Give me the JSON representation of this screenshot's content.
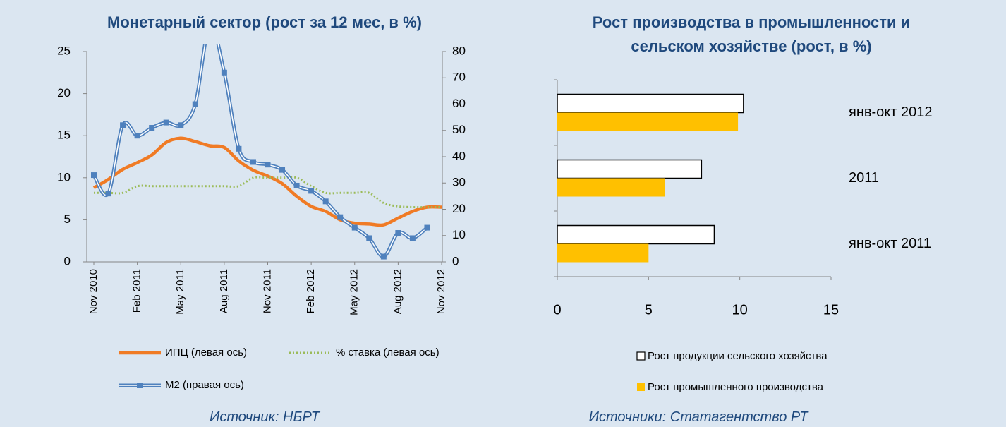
{
  "chart_data": [
    {
      "type": "line",
      "title": "Монетарный сектор (рост за 12 мес, в %)",
      "source": "Источник: НБРТ",
      "categories": [
        "Nov 2010",
        null,
        null,
        "Feb 2011",
        null,
        null,
        "May 2011",
        null,
        null,
        "Aug 2011",
        null,
        null,
        "Nov 2011",
        null,
        null,
        "Feb 2012",
        null,
        null,
        "May 2012",
        null,
        null,
        "Aug 2012",
        null,
        null,
        "Nov 2012"
      ],
      "ylim": [
        0,
        25
      ],
      "yticks": [
        0,
        5,
        10,
        15,
        20,
        25
      ],
      "y2lim": [
        0,
        80
      ],
      "y2ticks": [
        0,
        10,
        20,
        30,
        40,
        50,
        60,
        70,
        80
      ],
      "series": [
        {
          "name": "ИПЦ (левая ось)",
          "color": "#f07b25",
          "style": "solid",
          "values": [
            8.8,
            9.8,
            11,
            11.8,
            12.7,
            14.2,
            14.7,
            14.3,
            13.8,
            13.6,
            12,
            10.9,
            10.2,
            9.3,
            7.8,
            6.6,
            6,
            5,
            4.6,
            4.5,
            4.4,
            5.2,
            6,
            6.5,
            6.5
          ]
        },
        {
          "name": "% ставка (левая ось)",
          "color": "#9bbb59",
          "style": "dotted",
          "values": [
            8.2,
            8.2,
            8.2,
            9,
            9,
            9,
            9,
            9,
            9,
            9,
            9,
            10,
            10,
            10,
            10,
            9,
            8.2,
            8.2,
            8.2,
            8.2,
            7,
            6.6,
            6.5,
            6.5,
            6.5
          ]
        },
        {
          "name": "М2 (правая ось)",
          "color": "#4f81bd",
          "style": "double",
          "axis": "y2",
          "values": [
            33,
            26,
            52,
            48,
            51,
            53,
            52,
            60,
            90,
            72,
            43,
            38,
            37,
            35,
            29,
            27,
            23,
            17,
            13,
            9,
            2,
            11,
            9,
            13,
            null
          ]
        }
      ]
    },
    {
      "type": "barh",
      "title": "Рост производства в промышленности и сельском хозяйстве (рост, в %)",
      "source": "Источники: Статагентство РТ",
      "categories": [
        "янв-окт 2012",
        "2011",
        "янв-окт 2011"
      ],
      "xlim": [
        0,
        15
      ],
      "xticks": [
        0,
        5,
        10,
        15
      ],
      "series": [
        {
          "name": "Рост продукции сельского хозяйства",
          "color": "#ffffff",
          "values": [
            10.2,
            7.9,
            8.6
          ]
        },
        {
          "name": "Рост промышленного производства",
          "color": "#ffc000",
          "values": [
            9.9,
            5.9,
            5.0
          ]
        }
      ]
    }
  ]
}
